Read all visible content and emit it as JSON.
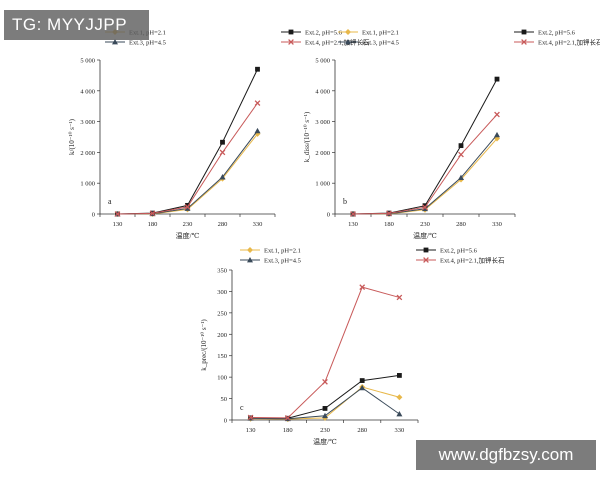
{
  "watermarks": {
    "top_left": "TG: MYYJJPP",
    "bottom_right": "www.dgfbzsy.com"
  },
  "colors": {
    "ext1": "#e8b84a",
    "ext2": "#1a1a1a",
    "ext3": "#3a4a5a",
    "ext4": "#c85a5a",
    "axis": "#333333"
  },
  "chart_data": [
    {
      "type": "line",
      "panel_label": "a",
      "xlabel": "温度/℃",
      "ylabel": "k/(10⁻¹⁰ s⁻¹)",
      "categories": [
        "130",
        "180",
        "230",
        "280",
        "330"
      ],
      "ylim": [
        0,
        5000
      ],
      "yticks": [
        0,
        1000,
        2000,
        3000,
        4000,
        5000
      ],
      "ytick_labels": [
        "0",
        "1 000",
        "2 000",
        "3 000",
        "4 000",
        "5 000"
      ],
      "legend_position": "top",
      "series": [
        {
          "name": "Ext.1, pH=2.1",
          "color": "#e8b84a",
          "marker": "diamond",
          "values": [
            0,
            0,
            150,
            1150,
            2600
          ]
        },
        {
          "name": "Ext.2, pH=5.6",
          "color": "#1a1a1a",
          "marker": "square",
          "values": [
            0,
            30,
            280,
            2330,
            4700
          ]
        },
        {
          "name": "Ext.3, pH=4.5",
          "color": "#3a4a5a",
          "marker": "triangle",
          "values": [
            0,
            10,
            180,
            1200,
            2700
          ]
        },
        {
          "name": "Ext.4, pH=2.1,加钾长石",
          "color": "#c85a5a",
          "marker": "x",
          "values": [
            0,
            20,
            230,
            2000,
            3600
          ]
        }
      ]
    },
    {
      "type": "line",
      "panel_label": "b",
      "xlabel": "温度/℃",
      "ylabel": "k_diss/(10⁻¹⁰ s⁻¹)",
      "categories": [
        "130",
        "180",
        "230",
        "280",
        "330"
      ],
      "ylim": [
        0,
        5000
      ],
      "yticks": [
        0,
        1000,
        2000,
        3000,
        4000,
        5000
      ],
      "ytick_labels": [
        "0",
        "1 000",
        "2 000",
        "3 000",
        "4 000",
        "5 000"
      ],
      "legend_position": "top",
      "series": [
        {
          "name": "Ext.1, pH=2.1",
          "color": "#e8b84a",
          "marker": "diamond",
          "values": [
            0,
            0,
            140,
            1120,
            2450
          ]
        },
        {
          "name": "Ext.2, pH=5.6",
          "color": "#1a1a1a",
          "marker": "square",
          "values": [
            0,
            30,
            270,
            2220,
            4380
          ]
        },
        {
          "name": "Ext.3, pH=4.5",
          "color": "#3a4a5a",
          "marker": "triangle",
          "values": [
            0,
            10,
            170,
            1180,
            2570
          ]
        },
        {
          "name": "Ext.4, pH=2.1,加钾长石",
          "color": "#c85a5a",
          "marker": "x",
          "values": [
            0,
            20,
            220,
            1930,
            3230
          ]
        }
      ]
    },
    {
      "type": "line",
      "panel_label": "c",
      "xlabel": "温度/℃",
      "ylabel": "k_prec/(10⁻¹⁰ s⁻¹)",
      "categories": [
        "130",
        "180",
        "230",
        "280",
        "330"
      ],
      "ylim": [
        0,
        350
      ],
      "yticks": [
        0,
        50,
        100,
        150,
        200,
        250,
        300,
        350
      ],
      "ytick_labels": [
        "0",
        "50",
        "100",
        "150",
        "200",
        "250",
        "300",
        "350"
      ],
      "legend_position": "top",
      "series": [
        {
          "name": "Ext.1, pH=2.1",
          "color": "#e8b84a",
          "marker": "diamond",
          "values": [
            3,
            2,
            5,
            77,
            53
          ]
        },
        {
          "name": "Ext.2, pH=5.6",
          "color": "#1a1a1a",
          "marker": "square",
          "values": [
            5,
            4,
            27,
            92,
            104
          ]
        },
        {
          "name": "Ext.3, pH=4.5",
          "color": "#3a4a5a",
          "marker": "triangle",
          "values": [
            4,
            3,
            10,
            75,
            14
          ]
        },
        {
          "name": "Ext.4, pH=2.1,加钾长石",
          "color": "#c85a5a",
          "marker": "x",
          "values": [
            6,
            5,
            89,
            310,
            286
          ]
        }
      ]
    }
  ]
}
